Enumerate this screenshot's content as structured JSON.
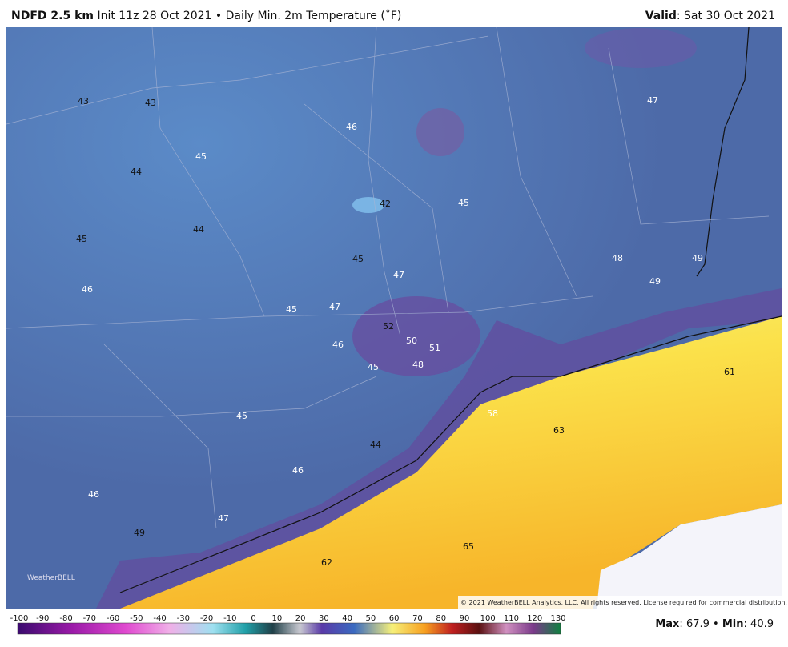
{
  "header": {
    "model": "NDFD 2.5 km",
    "init": "Init 11z 28 Oct 2021",
    "separator": "•",
    "field": "Daily Min. 2m Temperature (˚F)",
    "valid_label": "Valid",
    "valid_text": ": Sat 30 Oct 2021"
  },
  "map": {
    "labels": [
      43,
      43,
      46,
      47,
      45,
      44,
      42,
      45,
      45,
      44,
      45,
      47,
      48,
      49,
      49,
      46,
      45,
      47,
      52,
      50,
      51,
      46,
      45,
      48,
      61,
      45,
      58,
      63,
      44,
      46,
      46,
      47,
      49,
      65,
      62
    ],
    "logo": "WeatherBELL",
    "copyright": "© 2021 WeatherBELL Analytics, LLC. All rights reserved. License required for commercial distribution."
  },
  "colorbar": {
    "ticks": [
      -100,
      -90,
      -80,
      -70,
      -60,
      -50,
      -40,
      -30,
      -20,
      -10,
      0,
      10,
      20,
      30,
      40,
      50,
      60,
      70,
      80,
      90,
      100,
      110,
      120,
      130
    ]
  },
  "stats": {
    "max_label": "Max",
    "colon": ":",
    "max": 67.9,
    "separator": "•",
    "min_label": "Min",
    "min": 40.9
  }
}
